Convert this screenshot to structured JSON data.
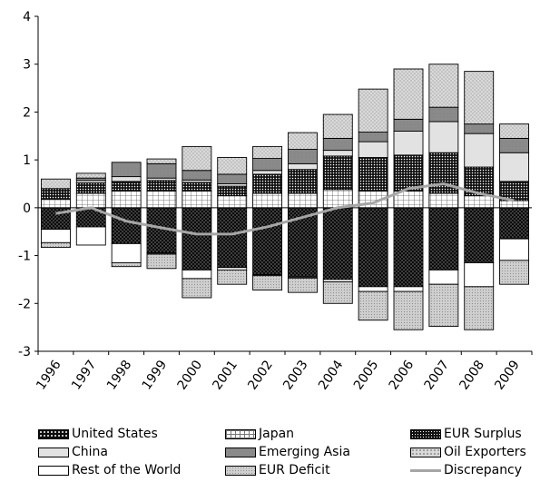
{
  "chart_data": {
    "type": "bar",
    "stacked": true,
    "categories": [
      "1996",
      "1997",
      "1998",
      "1999",
      "2000",
      "2001",
      "2002",
      "2003",
      "2004",
      "2005",
      "2006",
      "2007",
      "2008",
      "2009"
    ],
    "ylim": [
      -3,
      4
    ],
    "yticks": [
      "4",
      "3",
      "2",
      "1",
      "0",
      "-1",
      "-2",
      "-3"
    ],
    "series": [
      {
        "name": "United States",
        "key": "us",
        "values": [
          -0.45,
          -0.4,
          -0.75,
          -0.95,
          -1.3,
          -1.25,
          -1.4,
          -1.45,
          -1.5,
          -1.65,
          -1.65,
          -1.3,
          -1.15,
          -0.65
        ]
      },
      {
        "name": "Japan",
        "key": "jp",
        "values": [
          0.18,
          0.3,
          0.35,
          0.35,
          0.35,
          0.25,
          0.3,
          0.3,
          0.38,
          0.35,
          0.35,
          0.3,
          0.25,
          0.15
        ]
      },
      {
        "name": "EUR Surplus",
        "key": "eurs",
        "values": [
          0.22,
          0.22,
          0.2,
          0.22,
          0.18,
          0.2,
          0.4,
          0.5,
          0.7,
          0.7,
          0.75,
          0.85,
          0.6,
          0.4
        ]
      },
      {
        "name": "China",
        "key": "cn",
        "values": [
          0.0,
          0.05,
          0.1,
          0.05,
          0.05,
          0.05,
          0.08,
          0.12,
          0.12,
          0.33,
          0.5,
          0.65,
          0.7,
          0.6
        ]
      },
      {
        "name": "Emerging Asia",
        "key": "ea",
        "values": [
          0.0,
          0.05,
          0.3,
          0.3,
          0.2,
          0.2,
          0.25,
          0.3,
          0.25,
          0.2,
          0.25,
          0.3,
          0.2,
          0.3
        ]
      },
      {
        "name": "Oil Exporters",
        "key": "oil",
        "values": [
          0.2,
          0.1,
          0.0,
          0.1,
          0.5,
          0.35,
          0.25,
          0.35,
          0.5,
          0.9,
          1.05,
          0.9,
          1.1,
          0.3
        ]
      },
      {
        "name": "Rest of the World",
        "key": "row",
        "values": [
          -0.28,
          -0.38,
          -0.4,
          -0.02,
          -0.18,
          -0.05,
          -0.02,
          -0.02,
          -0.05,
          -0.1,
          -0.1,
          -0.3,
          -0.5,
          -0.45
        ]
      },
      {
        "name": "EUR Deficit",
        "key": "eurd",
        "values": [
          -0.1,
          0.0,
          -0.08,
          -0.3,
          -0.4,
          -0.3,
          -0.3,
          -0.3,
          -0.45,
          -0.6,
          -0.8,
          -0.88,
          -0.9,
          -0.5
        ]
      }
    ],
    "line": {
      "name": "Discrepancy",
      "key": "disc",
      "values": [
        -0.12,
        0.0,
        -0.28,
        -0.42,
        -0.55,
        -0.55,
        -0.4,
        -0.2,
        0.0,
        0.1,
        0.4,
        0.5,
        0.3,
        0.15
      ]
    },
    "grid": false,
    "legend": "bottom"
  },
  "colors": {
    "us": "#0d0d0d",
    "jp": "#ffffff",
    "eurs": "#1a1a1a",
    "cn": "#e2e2e2",
    "ea": "#8a8a8a",
    "oil": "#c8c8c8",
    "row": "#ffffff",
    "eurd": "#bdbdbd",
    "disc": "#a6a6a6"
  }
}
